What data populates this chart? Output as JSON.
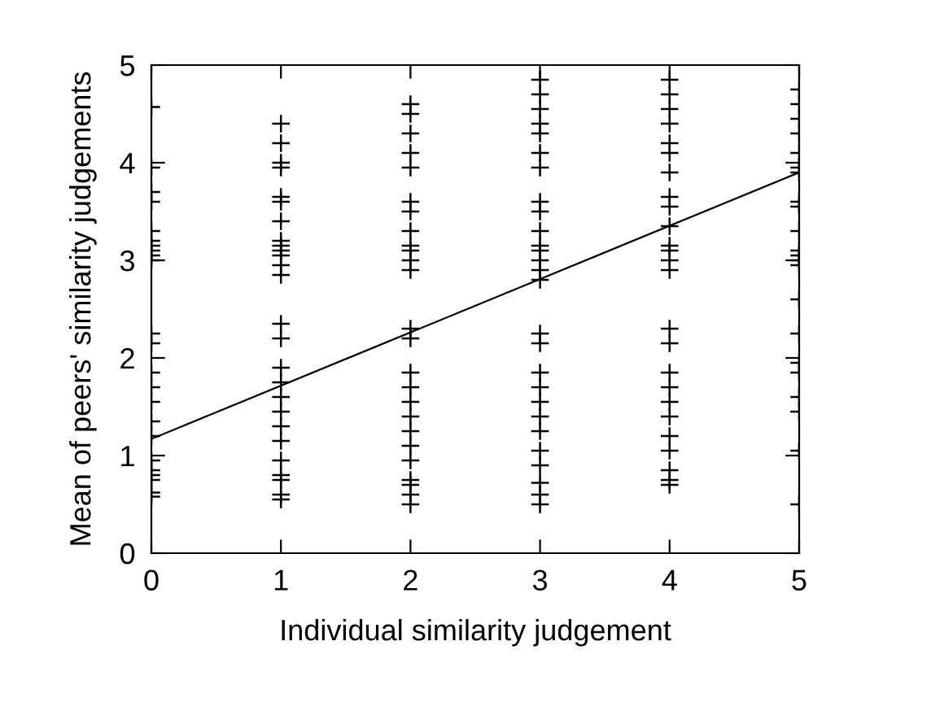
{
  "chart_data": {
    "type": "scatter",
    "xlabel": "Individual similarity judgement",
    "ylabel": "Mean of peers' similarity judgements",
    "xlim": [
      0,
      5
    ],
    "ylim": [
      0,
      5
    ],
    "xticks": [
      0,
      1,
      2,
      3,
      4,
      5
    ],
    "yticks": [
      0,
      1,
      2,
      3,
      4,
      5
    ],
    "grid": false,
    "legend": false,
    "series": [
      {
        "marker": "cross",
        "color": "#000000",
        "x": [
          0,
          0,
          0,
          0,
          0,
          0,
          0,
          0,
          0,
          0,
          0,
          0,
          0,
          0,
          0,
          0,
          0,
          0,
          0,
          0,
          0,
          0,
          0,
          1,
          1,
          1,
          1,
          1,
          1,
          1,
          1,
          1,
          1,
          1,
          1,
          1,
          1,
          1,
          1,
          1,
          1,
          1,
          1,
          1,
          1,
          1,
          1,
          1,
          1,
          2,
          2,
          2,
          2,
          2,
          2,
          2,
          2,
          2,
          2,
          2,
          2,
          2,
          2,
          2,
          2,
          2,
          2,
          2,
          2,
          2,
          2,
          2,
          2,
          2,
          3,
          3,
          3,
          3,
          3,
          3,
          3,
          3,
          3,
          3,
          3,
          3,
          3,
          3,
          3,
          3,
          3,
          3,
          3,
          3,
          3,
          3,
          3,
          3,
          3,
          3,
          3,
          4,
          4,
          4,
          4,
          4,
          4,
          4,
          4,
          4,
          4,
          4,
          4,
          4,
          4,
          4,
          4,
          4,
          4,
          4,
          4,
          4,
          4,
          4,
          4,
          4,
          5,
          5,
          5,
          5,
          5,
          5,
          5,
          5,
          5,
          5,
          5,
          5,
          5,
          5,
          5,
          5,
          5,
          5,
          5,
          5,
          5,
          5
        ],
        "values": [
          4.57,
          3.95,
          3.7,
          3.6,
          3.3,
          3.2,
          3.15,
          3.1,
          3.05,
          3.0,
          2.25,
          2.15,
          1.85,
          1.7,
          1.55,
          1.35,
          1.2,
          0.95,
          0.85,
          0.8,
          0.75,
          0.62,
          0.58,
          4.4,
          4.2,
          4.0,
          3.95,
          3.65,
          3.6,
          3.4,
          3.2,
          3.15,
          3.1,
          3.05,
          2.95,
          2.85,
          2.35,
          2.2,
          1.9,
          1.75,
          1.6,
          1.45,
          1.3,
          1.15,
          0.95,
          0.8,
          0.75,
          0.6,
          0.55,
          4.6,
          4.5,
          4.3,
          4.1,
          3.95,
          3.6,
          3.5,
          3.3,
          3.15,
          3.1,
          3.0,
          2.9,
          2.3,
          2.2,
          1.85,
          1.7,
          1.55,
          1.4,
          1.25,
          1.1,
          0.95,
          0.75,
          0.7,
          0.6,
          0.5,
          4.85,
          4.7,
          4.55,
          4.4,
          4.3,
          4.1,
          3.95,
          3.6,
          3.5,
          3.3,
          3.15,
          3.1,
          3.0,
          2.9,
          2.8,
          2.25,
          2.15,
          1.85,
          1.7,
          1.55,
          1.4,
          1.25,
          1.05,
          0.9,
          0.72,
          0.6,
          0.5,
          4.85,
          4.7,
          4.55,
          4.4,
          4.2,
          4.1,
          3.9,
          3.65,
          3.55,
          3.35,
          3.15,
          3.1,
          3.0,
          2.9,
          2.3,
          2.15,
          1.85,
          1.7,
          1.55,
          1.4,
          1.2,
          1.05,
          0.85,
          0.75,
          0.7,
          4.75,
          4.6,
          4.45,
          4.3,
          4.1,
          3.95,
          3.9,
          3.6,
          3.55,
          3.3,
          3.1,
          3.05,
          3.0,
          2.95,
          2.6,
          2.25,
          1.95,
          1.85,
          1.6,
          1.45,
          1.05,
          0.5
        ]
      },
      {
        "type": "line",
        "color": "#000000",
        "x": [
          0,
          5
        ],
        "values": [
          1.17,
          3.9
        ]
      }
    ]
  }
}
